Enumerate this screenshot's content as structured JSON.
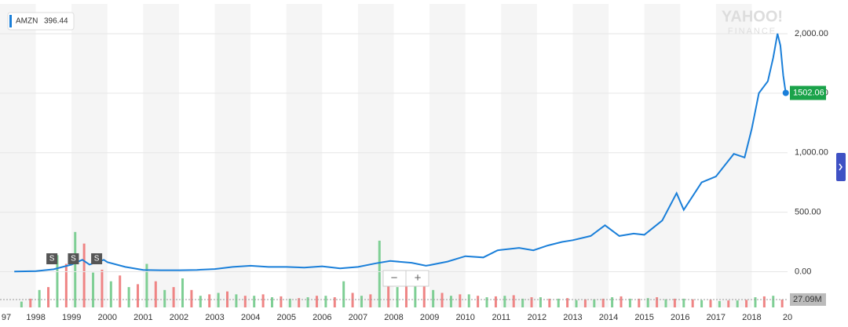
{
  "chart_data": {
    "type": "line",
    "watermark": [
      "YAHOO!",
      "FINANCE"
    ],
    "xlim": [
      1997,
      2019
    ],
    "xticks": [
      {
        "value": 1997,
        "label": "97"
      },
      1998,
      1999,
      2000,
      2001,
      2002,
      2003,
      2004,
      2005,
      2006,
      2007,
      2008,
      2009,
      2010,
      2011,
      2012,
      2013,
      2014,
      2015,
      2016,
      2017,
      2018,
      {
        "value": 2019,
        "label": "20"
      }
    ],
    "ylim": [
      -300,
      2250
    ],
    "yticks": [
      {
        "value": 0,
        "label": "0.00"
      },
      {
        "value": 500,
        "label": "500.00"
      },
      {
        "value": 1000,
        "label": "1,000.00"
      },
      {
        "value": 1500,
        "label": "1,500.00"
      },
      {
        "value": 2000,
        "label": "2,000.00"
      }
    ],
    "grid": true,
    "year_bands": true,
    "series": [
      {
        "name": "AMZN",
        "legend_value": 396.44,
        "color": "#1a7fd9",
        "x": [
          1997.4,
          1998.0,
          1998.5,
          1999.0,
          1999.3,
          1999.5,
          1999.9,
          2000.0,
          2000.5,
          2001.0,
          2001.5,
          2002.0,
          2002.5,
          2003.0,
          2003.5,
          2004.0,
          2004.5,
          2005.0,
          2005.5,
          2006.0,
          2006.5,
          2007.0,
          2007.5,
          2007.9,
          2008.5,
          2008.9,
          2009.0,
          2009.5,
          2010.0,
          2010.5,
          2010.9,
          2011.5,
          2011.9,
          2012.3,
          2012.7,
          2013.0,
          2013.5,
          2013.9,
          2014.3,
          2014.7,
          2015.0,
          2015.5,
          2015.9,
          2016.1,
          2016.6,
          2017.0,
          2017.5,
          2017.8,
          2018.0,
          2018.2,
          2018.45,
          2018.6,
          2018.72,
          2018.8,
          2018.88,
          2018.95
        ],
        "values": [
          2,
          5,
          20,
          60,
          100,
          60,
          100,
          80,
          40,
          15,
          12,
          12,
          15,
          22,
          40,
          50,
          40,
          40,
          35,
          45,
          28,
          40,
          70,
          90,
          75,
          50,
          55,
          85,
          130,
          120,
          180,
          200,
          180,
          220,
          250,
          265,
          300,
          390,
          300,
          320,
          310,
          430,
          660,
          520,
          750,
          800,
          990,
          960,
          1200,
          1500,
          1600,
          1800,
          2000,
          1900,
          1650,
          1502.06
        ],
        "last_value": 1502.06,
        "last_color": "#1aa34a"
      }
    ],
    "annotations": [
      {
        "x": 1998.45,
        "label": "S"
      },
      {
        "x": 1999.05,
        "label": "S"
      },
      {
        "x": 1999.7,
        "label": "S"
      }
    ],
    "volume": {
      "ylim": [
        0,
        300
      ],
      "last_value": 27.09,
      "last_label": "27.09M",
      "up": {
        "color": "#7fcf95",
        "x": [
          1997.6,
          1998.1,
          1998.6,
          1999.1,
          1999.6,
          2000.1,
          2000.6,
          2001.1,
          2001.6,
          2002.1,
          2002.6,
          2003.1,
          2003.6,
          2004.1,
          2004.6,
          2005.1,
          2005.6,
          2006.1,
          2006.6,
          2007.1,
          2007.6,
          2008.1,
          2008.6,
          2009.1,
          2009.6,
          2010.1,
          2010.6,
          2011.1,
          2011.6,
          2012.1,
          2012.6,
          2013.1,
          2013.6,
          2014.1,
          2014.6,
          2015.1,
          2015.6,
          2016.1,
          2016.6,
          2017.1,
          2017.6,
          2018.1,
          2018.6
        ],
        "values": [
          20,
          60,
          180,
          260,
          120,
          90,
          70,
          150,
          60,
          100,
          40,
          50,
          45,
          40,
          35,
          30,
          35,
          40,
          90,
          40,
          230,
          70,
          80,
          60,
          40,
          45,
          35,
          40,
          30,
          35,
          30,
          25,
          28,
          35,
          30,
          32,
          28,
          30,
          25,
          22,
          24,
          35,
          40
        ]
      },
      "down": {
        "color": "#ef8585",
        "x": [
          1997.85,
          1998.35,
          1998.85,
          1999.35,
          1999.85,
          2000.35,
          2000.85,
          2001.35,
          2001.85,
          2002.35,
          2002.85,
          2003.35,
          2003.85,
          2004.35,
          2004.85,
          2005.35,
          2005.85,
          2006.35,
          2006.85,
          2007.35,
          2007.85,
          2008.35,
          2008.85,
          2009.35,
          2009.85,
          2010.35,
          2010.85,
          2011.35,
          2011.85,
          2012.35,
          2012.85,
          2013.35,
          2013.85,
          2014.35,
          2014.85,
          2015.35,
          2015.85,
          2016.35,
          2016.85,
          2017.35,
          2017.85,
          2018.35,
          2018.85
        ],
        "values": [
          30,
          70,
          150,
          220,
          130,
          110,
          80,
          90,
          70,
          60,
          45,
          55,
          40,
          45,
          38,
          32,
          40,
          35,
          50,
          45,
          120,
          90,
          85,
          50,
          45,
          40,
          38,
          42,
          35,
          30,
          32,
          28,
          30,
          38,
          30,
          35,
          30,
          28,
          26,
          24,
          26,
          38,
          27.09
        ]
      }
    },
    "zoom": [
      "−",
      "+"
    ]
  }
}
